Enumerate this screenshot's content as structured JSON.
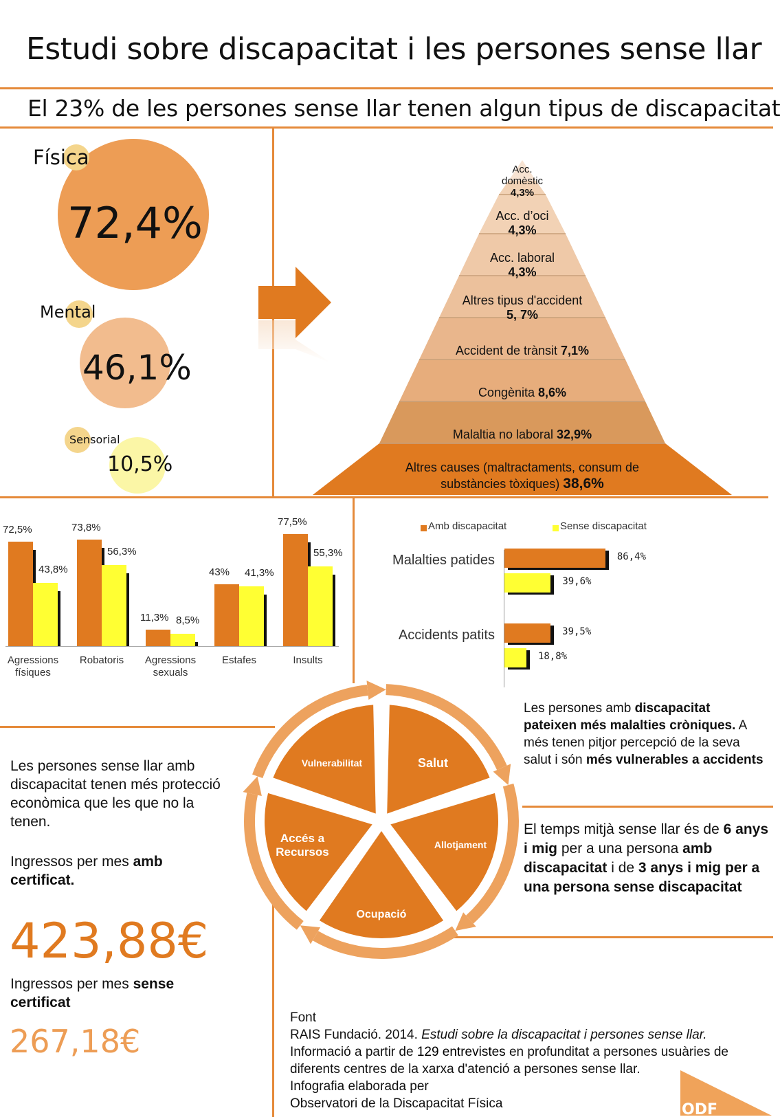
{
  "title": "Estudi sobre discapacitat i les persones sense llar",
  "subtitle": "El 23% de les persones sense llar tenen algun tipus de discapacitat",
  "disability_types": [
    {
      "label": "Física",
      "value": "72,4%"
    },
    {
      "label": "Mental",
      "value": "46,1%"
    },
    {
      "label": "Sensorial",
      "value": "10,5%"
    }
  ],
  "pyramid": [
    {
      "label": "Acc. domèstic",
      "value": "4,3%"
    },
    {
      "label": "Acc. d’oci",
      "value": "4,3%"
    },
    {
      "label": "Acc. laboral",
      "value": "4,3%"
    },
    {
      "label": "Altres tipus d'accident",
      "value": "5, 7%"
    },
    {
      "label": "Accident de trànsit",
      "value": "7,1%"
    },
    {
      "label": "Congènita",
      "value": "8,6%"
    },
    {
      "label": "Malaltia no laboral",
      "value": "32,9%"
    },
    {
      "label": "Altres causes (maltractaments, consum de substàncies tòxiques)",
      "value": "38,6%"
    }
  ],
  "chart_data": [
    {
      "type": "bar",
      "categories": [
        "Agressions físiques",
        "Robatoris",
        "Agressions sexuals",
        "Estafes",
        "Insults"
      ],
      "series": [
        {
          "values": [
            72.5,
            73.8,
            11.3,
            43,
            77.5
          ],
          "labels": [
            "72,5%",
            "73,8%",
            "11,3%",
            "43%",
            "77,5%"
          ],
          "color": "#e07a20"
        },
        {
          "values": [
            43.8,
            56.3,
            8.5,
            41.3,
            55.3
          ],
          "labels": [
            "43,8%",
            "56,3%",
            "8,5%",
            "41,3%",
            "55,3%"
          ],
          "color": "#ffff33"
        }
      ],
      "ylim": [
        0,
        100
      ]
    },
    {
      "type": "bar",
      "orientation": "horizontal",
      "categories": [
        "Malalties patides",
        "Accidents patits"
      ],
      "series": [
        {
          "name": "Amb discapacitat",
          "values": [
            86.4,
            39.5
          ],
          "labels": [
            "86,4%",
            "39,5%"
          ],
          "color": "#e07a20"
        },
        {
          "name": "Sense discapacitat",
          "values": [
            39.6,
            18.8
          ],
          "labels": [
            "39,6%",
            "18,8%"
          ],
          "color": "#ffff33"
        }
      ],
      "xlim": [
        0,
        100
      ]
    }
  ],
  "cycle": [
    "Salut",
    "Allotjament",
    "Ocupació",
    "Accés a Recursos",
    "Vulnerabilitat"
  ],
  "text_health": {
    "p1": "Les persones amb ",
    "b1": "discapacitat pateixen més malalties cròniques.",
    "p2": " A més tenen pitjor percepció de la seva salut i són ",
    "b2": "més vulnerables a accidents"
  },
  "text_time": {
    "p1": "El temps mitjà sense llar és de ",
    "b1": "6 anys i mig",
    "p2": " per a una persona ",
    "b2": "amb discapacitat",
    "p3": " i de ",
    "b3": "3 anys i mig per a una persona sense discapacitat"
  },
  "income": {
    "intro": "Les persones sense llar amb discapacitat tenen més protecció econòmica que les que no la tenen.",
    "with_pre": "Ingressos per mes ",
    "with_bold": "amb certificat.",
    "with_value": "423,88€",
    "without_pre": "Ingressos per mes ",
    "without_bold": "sense certificat",
    "without_value": "267,18€"
  },
  "source": {
    "heading": "Font",
    "l2_pre": "RAIS Fundació. 2014. ",
    "l2_italic": "Estudi sobre la discapacitat i persones sense llar.",
    "l3_a": "Informació a partir de ",
    "l3_b": "129 entrevistes",
    "l3_c": " en profunditat a ",
    "l3_d": "persones usuàries",
    "l3_e": " de",
    "l4_a": "diferents ",
    "l4_b": "centres de la xarxa d'atenció a persones sense llar.",
    "l5": "Infografia elaborada per",
    "l6": "Observatori de la Discapacitat Física",
    "logo": "ODF"
  },
  "colors": {
    "orange": "#e07a20",
    "yellow": "#ffff33",
    "line": "#e58a3a"
  }
}
